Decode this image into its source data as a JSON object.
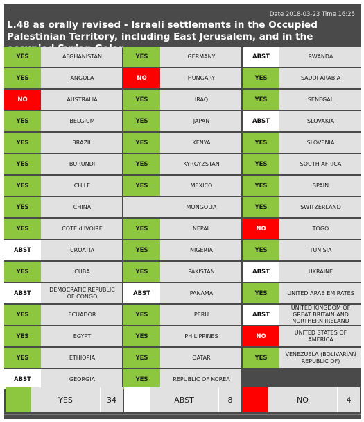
{
  "header": {
    "date_label": "Date 2018-03-23",
    "time_label": "Time 16:25",
    "title": "L.48 as orally revised - Israeli settlements in the Occupied Palestinian Territory, including East Jerusalem, and in the occupied Syrian Golan"
  },
  "colors": {
    "yes": "#8dc63f",
    "no": "#ff0000",
    "abst": "#ffffff",
    "background": "#4a4a4a"
  },
  "votes": [
    {
      "vote": "YES",
      "country": "AFGHANISTAN"
    },
    {
      "vote": "YES",
      "country": "ANGOLA"
    },
    {
      "vote": "NO",
      "country": "AUSTRALIA"
    },
    {
      "vote": "YES",
      "country": "BELGIUM"
    },
    {
      "vote": "YES",
      "country": "BRAZIL"
    },
    {
      "vote": "YES",
      "country": "BURUNDI"
    },
    {
      "vote": "YES",
      "country": "CHILE"
    },
    {
      "vote": "YES",
      "country": "CHINA"
    },
    {
      "vote": "YES",
      "country": "COTE d'IVOIRE"
    },
    {
      "vote": "ABST",
      "country": "CROATIA"
    },
    {
      "vote": "YES",
      "country": "CUBA"
    },
    {
      "vote": "ABST",
      "country": "DEMOCRATIC REPUBLIC OF CONGO"
    },
    {
      "vote": "YES",
      "country": "ECUADOR"
    },
    {
      "vote": "YES",
      "country": "EGYPT"
    },
    {
      "vote": "YES",
      "country": "ETHIOPIA"
    },
    {
      "vote": "ABST",
      "country": "GEORGIA"
    },
    {
      "vote": "",
      "country": ""
    },
    {
      "vote": "YES",
      "country": "GERMANY"
    },
    {
      "vote": "NO",
      "country": "HUNGARY"
    },
    {
      "vote": "YES",
      "country": "IRAQ"
    },
    {
      "vote": "YES",
      "country": "JAPAN"
    },
    {
      "vote": "YES",
      "country": "KENYA"
    },
    {
      "vote": "YES",
      "country": "KYRGYZSTAN"
    },
    {
      "vote": "YES",
      "country": "MEXICO"
    },
    {
      "vote": "",
      "country": "MONGOLIA"
    },
    {
      "vote": "YES",
      "country": "NEPAL"
    },
    {
      "vote": "YES",
      "country": "NIGERIA"
    },
    {
      "vote": "YES",
      "country": "PAKISTAN"
    },
    {
      "vote": "ABST",
      "country": "PANAMA"
    },
    {
      "vote": "YES",
      "country": "PERU"
    },
    {
      "vote": "YES",
      "country": "PHILIPPINES"
    },
    {
      "vote": "YES",
      "country": "QATAR"
    },
    {
      "vote": "YES",
      "country": "REPUBLIC OF KOREA"
    },
    {
      "vote": "",
      "country": ""
    },
    {
      "vote": "ABST",
      "country": "RWANDA"
    },
    {
      "vote": "YES",
      "country": "SAUDI ARABIA"
    },
    {
      "vote": "YES",
      "country": "SENEGAL"
    },
    {
      "vote": "ABST",
      "country": "SLOVAKIA"
    },
    {
      "vote": "YES",
      "country": "SLOVENIA"
    },
    {
      "vote": "YES",
      "country": "SOUTH AFRICA"
    },
    {
      "vote": "YES",
      "country": "SPAIN"
    },
    {
      "vote": "YES",
      "country": "SWITZERLAND"
    },
    {
      "vote": "NO",
      "country": "TOGO"
    },
    {
      "vote": "YES",
      "country": "TUNISIA"
    },
    {
      "vote": "ABST",
      "country": "UKRAINE"
    },
    {
      "vote": "YES",
      "country": "UNITED ARAB EMIRATES"
    },
    {
      "vote": "ABST",
      "country": "UNITED KINGDOM OF GREAT BRITAIN AND NORTHERN IRELAND"
    },
    {
      "vote": "NO",
      "country": "UNITED STATES OF AMERICA"
    },
    {
      "vote": "YES",
      "country": "VENEZUELA (BOLIVARIAN REPUBLIC OF)"
    },
    {
      "vote": "",
      "country": ""
    },
    {
      "vote": "",
      "country": ""
    }
  ],
  "totals": [
    {
      "label": "YES",
      "count": "34",
      "kind": "yes"
    },
    {
      "label": "ABST",
      "count": "8",
      "kind": "abst"
    },
    {
      "label": "NO",
      "count": "4",
      "kind": "no"
    }
  ]
}
